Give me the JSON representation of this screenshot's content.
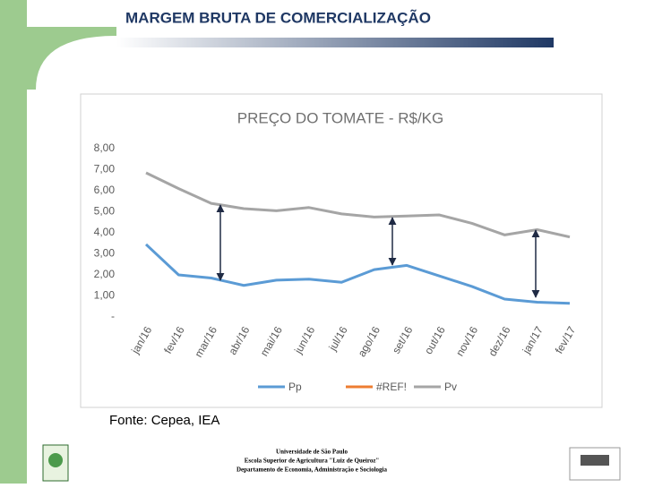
{
  "header": {
    "title": "MARGEM BRUTA DE COMERCIALIZAÇÃO"
  },
  "chart_data": {
    "type": "line",
    "title": "PREÇO DO TOMATE - R$/KG",
    "categories": [
      "jan/16",
      "fev/16",
      "mar/16",
      "abr/16",
      "mai/16",
      "jun/16",
      "jul/16",
      "ago/16",
      "set/16",
      "out/16",
      "nov/16",
      "dez/16",
      "jan/17",
      "fev/17"
    ],
    "series": [
      {
        "name": "Pp",
        "color": "#5b9bd5",
        "values": [
          3.45,
          2.0,
          1.85,
          1.5,
          1.75,
          1.8,
          1.65,
          2.25,
          2.45,
          1.95,
          1.45,
          0.85,
          0.7,
          0.65
        ]
      },
      {
        "name": "#REF!",
        "color": "#ed7d31",
        "values": [
          null,
          null,
          null,
          null,
          null,
          null,
          null,
          null,
          null,
          null,
          null,
          null,
          null,
          null
        ]
      },
      {
        "name": "Pv",
        "color": "#a5a5a5",
        "values": [
          6.85,
          6.1,
          5.4,
          5.15,
          5.05,
          5.2,
          4.9,
          4.75,
          4.8,
          4.85,
          4.45,
          3.9,
          4.15,
          3.8
        ]
      }
    ],
    "ylim": [
      0,
      8
    ],
    "yticks": [
      {
        "value": 0,
        "label": "-"
      },
      {
        "value": 1,
        "label": "1,00"
      },
      {
        "value": 2,
        "label": "2,00"
      },
      {
        "value": 3,
        "label": "3,00"
      },
      {
        "value": 4,
        "label": "4,00"
      },
      {
        "value": 5,
        "label": "5,00"
      },
      {
        "value": 6,
        "label": "6,00"
      },
      {
        "value": 7,
        "label": "7,00"
      },
      {
        "value": 8,
        "label": "8,00"
      }
    ],
    "legend": "bottom"
  },
  "source": "Fonte: Cepea, IEA",
  "footer": {
    "lines": [
      "Universidade de São Paulo",
      "Escola Superior de Agricultura \"Luiz de Queiroz\"",
      "Departamento de Economia, Administração e Sociologia"
    ]
  }
}
